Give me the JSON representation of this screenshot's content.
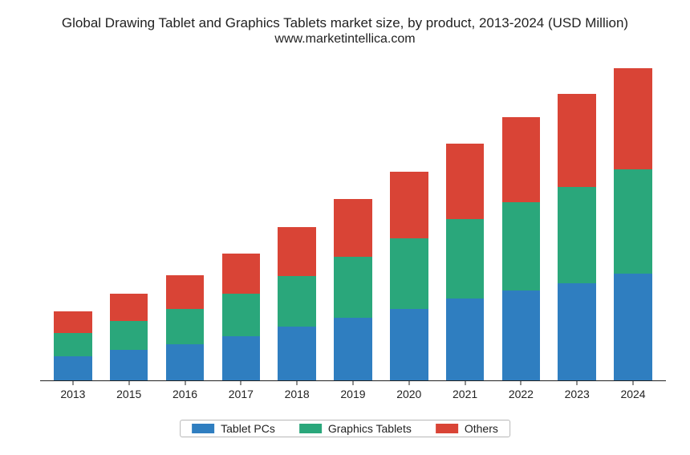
{
  "chart": {
    "type": "stacked-bar",
    "title_line1": "Global Drawing Tablet and Graphics Tablets market size, by product, 2013-2024 (USD Million)",
    "title_line2": "www.marketintellica.com",
    "title_fontsize": 17,
    "background_color": "#ffffff",
    "axis_color": "#222222",
    "x_tick_fontsize": 14,
    "legend_fontsize": 14,
    "legend_border_color": "#b8b8b8",
    "y_max": 520,
    "bar_width_ratio": 0.68,
    "categories": [
      "2013",
      "2015",
      "2016",
      "2017",
      "2018",
      "2019",
      "2020",
      "2021",
      "2022",
      "2023",
      "2024"
    ],
    "series": [
      {
        "key": "tablet_pcs",
        "label": "Tablet PCs",
        "color": "#2f7ec0"
      },
      {
        "key": "graphics_tablets",
        "label": "Graphics Tablets",
        "color": "#2aa77b"
      },
      {
        "key": "others",
        "label": "Others",
        "color": "#d94436"
      }
    ],
    "data": {
      "tablet_pcs": [
        40,
        50,
        60,
        72,
        88,
        103,
        118,
        135,
        148,
        160,
        175
      ],
      "graphics_tablets": [
        38,
        48,
        58,
        70,
        84,
        100,
        115,
        130,
        145,
        158,
        172
      ],
      "others": [
        35,
        45,
        55,
        67,
        80,
        95,
        110,
        125,
        140,
        153,
        167
      ]
    }
  }
}
